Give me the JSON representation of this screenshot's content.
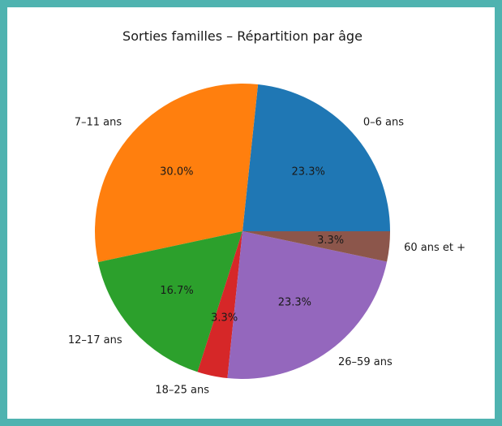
{
  "chart_data": {
    "type": "pie",
    "title": "Sorties familles – Répartition par âge",
    "categories": [
      "0–6 ans",
      "7–11 ans",
      "12–17 ans",
      "18–25 ans",
      "26–59 ans",
      "60 ans et +"
    ],
    "values": [
      23.3,
      30.0,
      16.7,
      3.3,
      23.3,
      3.3
    ],
    "percent_labels": [
      "23.3%",
      "30.0%",
      "16.7%",
      "3.3%",
      "23.3%",
      "3.3%"
    ],
    "colors": [
      "#1f77b4",
      "#ff7f0e",
      "#2ca02c",
      "#d62728",
      "#9467bd",
      "#8c564b"
    ],
    "start_angle_deg": 0,
    "direction": "counterclockwise"
  },
  "frame": {
    "border_color": "#4fb3b0"
  }
}
